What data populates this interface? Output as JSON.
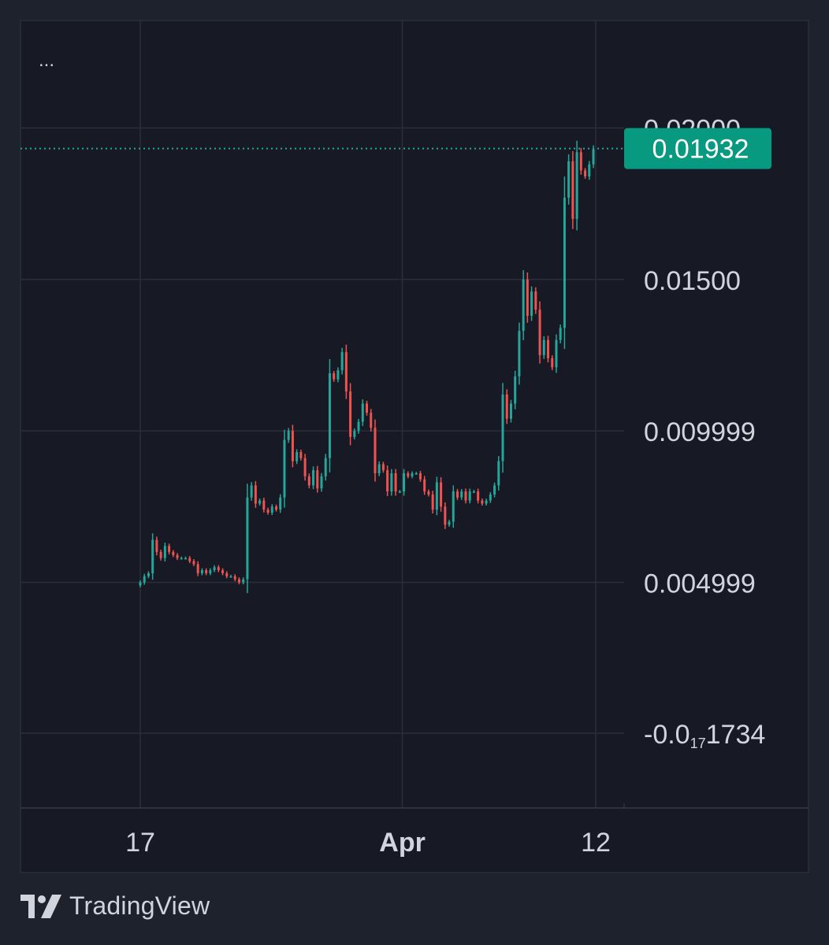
{
  "colors": {
    "background": "#1e222d",
    "pane": "#171a24",
    "grid": "#2a2e39",
    "up": "#26a69a",
    "down": "#ef5350",
    "text": "#d1d4dc",
    "price_line": "#26a69a",
    "price_badge": "#089981"
  },
  "menu": {
    "dots": "..."
  },
  "brand": {
    "name": "TradingView",
    "icon": "tradingview-logo-icon"
  },
  "chart_data": {
    "type": "candlestick",
    "y_axis": {
      "ticks": [
        {
          "value": 0.02,
          "label": "0.02000"
        },
        {
          "value": 0.015,
          "label": "0.01500"
        },
        {
          "value": 0.009999,
          "label": "0.009999"
        },
        {
          "value": 0.004999,
          "label": "0.004999"
        },
        {
          "value": 0,
          "label_prefix": "-0.0",
          "label_subscript": "17",
          "label_suffix": "1734"
        }
      ],
      "range": [
        -0.0025,
        0.0235
      ]
    },
    "x_axis": {
      "ticks": [
        {
          "position": 0.0,
          "label": "17",
          "bold": false
        },
        {
          "position": 0.5714,
          "label": "Apr",
          "bold": true
        },
        {
          "position": 0.9932,
          "label": "12",
          "bold": false
        }
      ]
    },
    "last_price": {
      "value": 0.01932,
      "label": "0.01932"
    },
    "closes": [
      0.005,
      0.0052,
      0.0053,
      0.0064,
      0.006,
      0.0058,
      0.0062,
      0.006,
      0.0059,
      0.0058,
      0.0058,
      0.0058,
      0.0057,
      0.0056,
      0.0053,
      0.0054,
      0.0053,
      0.0054,
      0.0055,
      0.0054,
      0.0053,
      0.0052,
      0.0052,
      0.0051,
      0.005,
      0.0051,
      0.0078,
      0.0082,
      0.0076,
      0.0077,
      0.0074,
      0.0073,
      0.0075,
      0.0074,
      0.0078,
      0.0097,
      0.01,
      0.009,
      0.0093,
      0.0091,
      0.0085,
      0.0082,
      0.0087,
      0.0081,
      0.0085,
      0.0091,
      0.0119,
      0.0117,
      0.012,
      0.0126,
      0.0113,
      0.0098,
      0.01,
      0.0103,
      0.0109,
      0.0106,
      0.0101,
      0.0086,
      0.0089,
      0.0087,
      0.008,
      0.0086,
      0.008,
      0.008,
      0.0086,
      0.0085,
      0.0086,
      0.0086,
      0.0084,
      0.008,
      0.0079,
      0.0074,
      0.0083,
      0.0075,
      0.0069,
      0.007,
      0.008,
      0.0078,
      0.008,
      0.0077,
      0.008,
      0.008,
      0.0077,
      0.0076,
      0.0077,
      0.0079,
      0.0082,
      0.009,
      0.0112,
      0.0104,
      0.0109,
      0.0118,
      0.0133,
      0.015,
      0.0138,
      0.0146,
      0.014,
      0.0125,
      0.013,
      0.0124,
      0.0121,
      0.013,
      0.0134,
      0.0177,
      0.0189,
      0.017,
      0.0192,
      0.0186,
      0.0184,
      0.0188,
      0.0193
    ]
  }
}
